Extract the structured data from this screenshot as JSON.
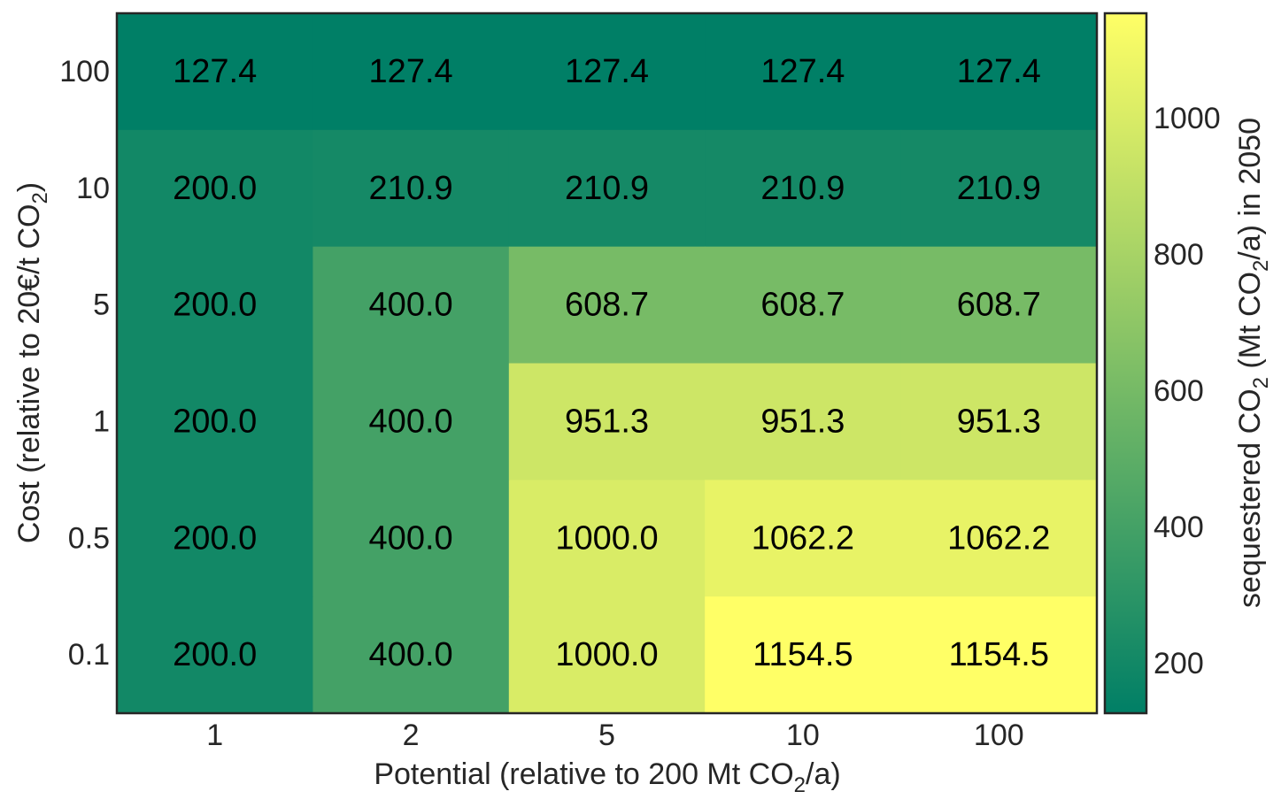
{
  "chart_data": {
    "type": "heatmap",
    "x_categories": [
      "1",
      "2",
      "5",
      "10",
      "100"
    ],
    "y_categories": [
      "100",
      "10",
      "5",
      "1",
      "0.5",
      "0.1"
    ],
    "values": [
      [
        127.4,
        127.4,
        127.4,
        127.4,
        127.4
      ],
      [
        200.0,
        210.9,
        210.9,
        210.9,
        210.9
      ],
      [
        200.0,
        400.0,
        608.7,
        608.7,
        608.7
      ],
      [
        200.0,
        400.0,
        951.3,
        951.3,
        951.3
      ],
      [
        200.0,
        400.0,
        1000.0,
        1062.2,
        1062.2
      ],
      [
        200.0,
        400.0,
        1000.0,
        1154.5,
        1154.5
      ]
    ],
    "value_labels": [
      [
        "127.4",
        "127.4",
        "127.4",
        "127.4",
        "127.4"
      ],
      [
        "200.0",
        "210.9",
        "210.9",
        "210.9",
        "210.9"
      ],
      [
        "200.0",
        "400.0",
        "608.7",
        "608.7",
        "608.7"
      ],
      [
        "200.0",
        "400.0",
        "951.3",
        "951.3",
        "951.3"
      ],
      [
        "200.0",
        "400.0",
        "1000.0",
        "1062.2",
        "1062.2"
      ],
      [
        "200.0",
        "400.0",
        "1000.0",
        "1154.5",
        "1154.5"
      ]
    ],
    "xlabel": {
      "pre": "Potential (relative to 200 Mt CO",
      "sub": "2",
      "post": "/a)"
    },
    "ylabel": {
      "pre": "Cost (relative to 20€/t CO",
      "sub": "2",
      "post": ")"
    },
    "colorbar": {
      "label": {
        "pre": "sequestered CO",
        "sub": "2",
        "mid": " (Mt CO",
        "sub2": "2",
        "post": "/a) in 2050"
      },
      "ticks": [
        200,
        400,
        600,
        800,
        1000
      ],
      "tick_labels": [
        "200",
        "400",
        "600",
        "800",
        "1000"
      ],
      "range": [
        127.4,
        1154.5
      ],
      "colormap": [
        "#007f66",
        "#ffff66"
      ]
    },
    "grid": false
  }
}
